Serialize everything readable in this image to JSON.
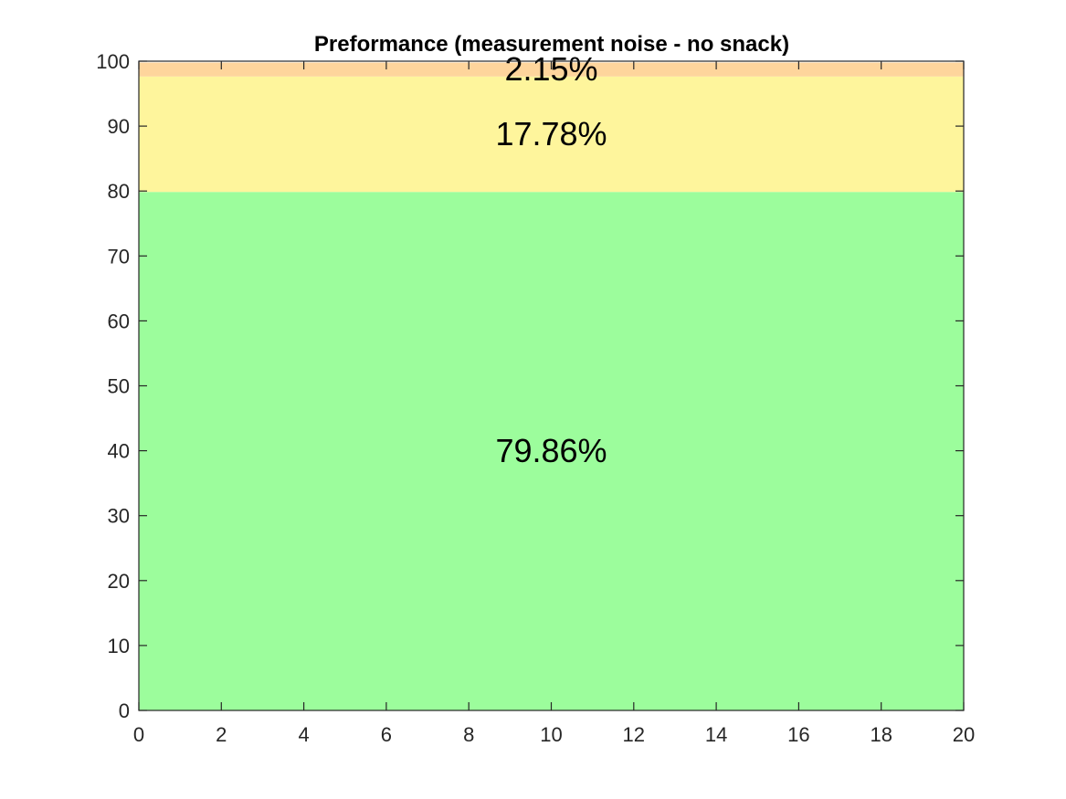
{
  "chart_data": {
    "type": "area",
    "title": "Preformance (measurement noise - no snack)",
    "xlabel": "",
    "ylabel": "",
    "xlim": [
      0,
      20
    ],
    "ylim": [
      0,
      100
    ],
    "x_ticks": [
      0,
      2,
      4,
      6,
      8,
      10,
      12,
      14,
      16,
      18,
      20
    ],
    "y_ticks": [
      0,
      10,
      20,
      30,
      40,
      50,
      60,
      70,
      80,
      90,
      100
    ],
    "grid": false,
    "series": [
      {
        "label": "79.86%",
        "value": 79.86,
        "color": "#9cfd9c"
      },
      {
        "label": "17.78%",
        "value": 17.78,
        "color": "#fef59c"
      },
      {
        "label": "2.15%",
        "value": 2.15,
        "color": "#fed59c"
      }
    ]
  }
}
